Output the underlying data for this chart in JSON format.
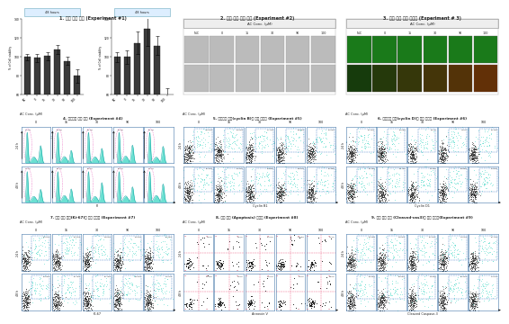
{
  "background_color": "#ffffff",
  "panel_titles": [
    "1. 세포 성장 확인 (Experiment #1)",
    "2. 세포 모양 변화 관찰 (Experiment #2)",
    "3. 세포 사멸 정도 정량화 (Experiment # 3)",
    "4. 세포주기 분포 확인 (Experiment #4)",
    "5. 세포주기 마커(cyclin B)의 발현 정량화 (Experiment #5)",
    "6. 세포주기 마커(cyclin D)의 발현 정량화 (Experiment #6)",
    "7. 세포 분열 마커(Ki-67)의 발현 정량화 (Experiment #7)",
    "8. 세포 자살 (Apoptosis) 정량화 (Experiment #8)",
    "9. 세포 자살 마커 (Cleaved-cas3)의 발현 정량화(Experiment #9)"
  ],
  "exp1_cats": [
    "NC",
    "0",
    "15",
    "30",
    "90",
    "100"
  ],
  "exp1_vals1": [
    100,
    99,
    101,
    108,
    96,
    80
  ],
  "exp1_err1": [
    3,
    4,
    4,
    5,
    4,
    7
  ],
  "exp1_vals2": [
    100,
    100,
    115,
    130,
    112,
    58
  ],
  "exp1_err2": [
    5,
    7,
    12,
    18,
    10,
    9
  ],
  "bar_color": "#3a3a3a",
  "label1": "48 hours",
  "label2": "48 hours",
  "ylabel": "% of Cell viability",
  "conc6": [
    "N.C",
    "0",
    "15",
    "30",
    "90",
    "100"
  ],
  "conc5": [
    "0",
    "15",
    "30",
    "90",
    "100"
  ],
  "ac_label": "AC Conc. (μM)",
  "xl4": "Pi",
  "xl5": "Cyclin B1",
  "xl6": "Cyclin D1",
  "xl7": "Ki-67",
  "xl8": "Annexin V",
  "xl9": "Cleaved Caspase-3",
  "yl_24h": "24 h",
  "yl_48h": "48 h",
  "yl_ssc": "SSC"
}
